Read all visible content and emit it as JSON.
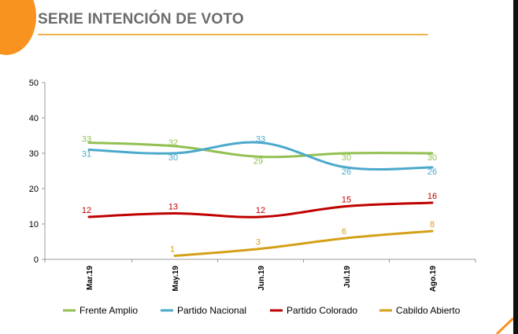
{
  "header": {
    "title": "SERIE INTENCIÓN DE VOTO"
  },
  "colors": {
    "accent": "#f7931e",
    "rule": "#f0b24a"
  },
  "chart_data": {
    "type": "line",
    "title": "SERIE INTENCIÓN DE VOTO",
    "xlabel": "",
    "ylabel": "",
    "ylim": [
      0,
      50
    ],
    "yticks": [
      "0",
      "10",
      "20",
      "30",
      "40",
      "50"
    ],
    "categories": [
      "Mar.19",
      "May.19",
      "Jun.19",
      "Jul.19",
      "Ago.19"
    ],
    "legend_position": "bottom",
    "series": [
      {
        "name": "Frente Amplio",
        "color": "#92c050",
        "values": [
          33,
          32,
          29,
          30,
          30
        ]
      },
      {
        "name": "Partido Nacional",
        "color": "#4ba9cc",
        "values": [
          31,
          30,
          33,
          26,
          26
        ]
      },
      {
        "name": "Partido Colorado",
        "color": "#c00000",
        "values": [
          12,
          13,
          12,
          15,
          16
        ]
      },
      {
        "name": "Cabildo Abierto",
        "color": "#d4a017",
        "values": [
          null,
          1,
          3,
          6,
          8
        ]
      }
    ]
  }
}
